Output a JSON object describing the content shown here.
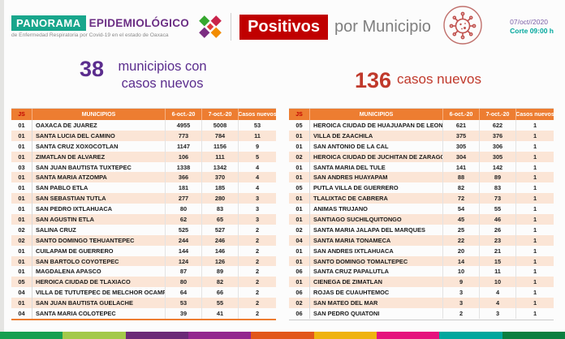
{
  "header": {
    "brand": {
      "panorama": "PANORAMA",
      "epidemiologico": "EPIDEMIOLÓGICO",
      "subtitle": "de Enfermedad Respiratoria por Covid-19 en el estado de Oaxaca"
    },
    "title_badge": "Positivos",
    "title_rest": "por Municipio",
    "date": "07/oct//2020",
    "cutoff": "Corte 09:00 h"
  },
  "summary": {
    "left_number": "38",
    "left_label": "municipios con casos nuevos",
    "right_number": "136",
    "right_label": "casos nuevos"
  },
  "tables": {
    "columns": [
      "JS",
      "MUNICIPIOS",
      "6-oct.-20",
      "7-oct.-20",
      "Casos nuevos"
    ],
    "left": {
      "rows": [
        [
          "01",
          "OAXACA DE JUAREZ",
          "4955",
          "5008",
          "53"
        ],
        [
          "01",
          "SANTA LUCIA DEL CAMINO",
          "773",
          "784",
          "11"
        ],
        [
          "01",
          "SANTA CRUZ XOXOCOTLAN",
          "1147",
          "1156",
          "9"
        ],
        [
          "01",
          "ZIMATLAN DE ALVAREZ",
          "106",
          "111",
          "5"
        ],
        [
          "03",
          "SAN JUAN BAUTISTA TUXTEPEC",
          "1338",
          "1342",
          "4"
        ],
        [
          "01",
          "SANTA MARIA ATZOMPA",
          "366",
          "370",
          "4"
        ],
        [
          "01",
          "SAN PABLO ETLA",
          "181",
          "185",
          "4"
        ],
        [
          "01",
          "SAN SEBASTIAN TUTLA",
          "277",
          "280",
          "3"
        ],
        [
          "01",
          "SAN PEDRO IXTLAHUACA",
          "80",
          "83",
          "3"
        ],
        [
          "01",
          "SAN AGUSTIN ETLA",
          "62",
          "65",
          "3"
        ],
        [
          "02",
          "SALINA CRUZ",
          "525",
          "527",
          "2"
        ],
        [
          "02",
          "SANTO DOMINGO TEHUANTEPEC",
          "244",
          "246",
          "2"
        ],
        [
          "01",
          "CUILAPAM DE GUERRERO",
          "144",
          "146",
          "2"
        ],
        [
          "01",
          "SAN BARTOLO COYOTEPEC",
          "124",
          "126",
          "2"
        ],
        [
          "01",
          "MAGDALENA APASCO",
          "87",
          "89",
          "2"
        ],
        [
          "05",
          "HEROICA CIUDAD DE TLAXIACO",
          "80",
          "82",
          "2"
        ],
        [
          "04",
          "VILLA DE TUTUTEPEC DE MELCHOR OCAMPO",
          "64",
          "66",
          "2"
        ],
        [
          "01",
          "SAN JUAN BAUTISTA GUELACHE",
          "53",
          "55",
          "2"
        ],
        [
          "04",
          "SANTA MARIA COLOTEPEC",
          "39",
          "41",
          "2"
        ]
      ]
    },
    "right": {
      "rows": [
        [
          "05",
          "HEROICA CIUDAD DE HUAJUAPAN DE LEON",
          "621",
          "622",
          "1"
        ],
        [
          "01",
          "VILLA DE ZAACHILA",
          "375",
          "376",
          "1"
        ],
        [
          "01",
          "SAN ANTONIO DE LA CAL",
          "305",
          "306",
          "1"
        ],
        [
          "02",
          "HEROICA CIUDAD DE JUCHITAN DE ZARAGOZA",
          "304",
          "305",
          "1"
        ],
        [
          "01",
          "SANTA MARIA DEL TULE",
          "141",
          "142",
          "1"
        ],
        [
          "01",
          "SAN ANDRES HUAYAPAM",
          "88",
          "89",
          "1"
        ],
        [
          "05",
          "PUTLA VILLA DE GUERRERO",
          "82",
          "83",
          "1"
        ],
        [
          "01",
          "TLALIXTAC DE CABRERA",
          "72",
          "73",
          "1"
        ],
        [
          "01",
          "ANIMAS TRUJANO",
          "54",
          "55",
          "1"
        ],
        [
          "01",
          "SANTIAGO SUCHILQUITONGO",
          "45",
          "46",
          "1"
        ],
        [
          "02",
          "SANTA MARIA JALAPA DEL MARQUES",
          "25",
          "26",
          "1"
        ],
        [
          "04",
          "SANTA MARIA TONAMECA",
          "22",
          "23",
          "1"
        ],
        [
          "01",
          "SAN ANDRES IXTLAHUACA",
          "20",
          "21",
          "1"
        ],
        [
          "01",
          "SANTO DOMINGO TOMALTEPEC",
          "14",
          "15",
          "1"
        ],
        [
          "06",
          "SANTA CRUZ PAPALUTLA",
          "10",
          "11",
          "1"
        ],
        [
          "01",
          "CIENEGA DE ZIMATLAN",
          "9",
          "10",
          "1"
        ],
        [
          "06",
          "ROJAS DE CUAUHTEMOC",
          "3",
          "4",
          "1"
        ],
        [
          "02",
          "SAN MATEO DEL MAR",
          "3",
          "4",
          "1"
        ],
        [
          "06",
          "SAN PEDRO QUIATONI",
          "2",
          "3",
          "1"
        ]
      ]
    }
  },
  "icons": {
    "virus_icon": "virus-icon",
    "diamond_logo": "diamond-logo-icon"
  },
  "colors": {
    "table_header_orange": "#ED7D31",
    "table_zebra_peach": "#FBE5D6",
    "badge_red": "#C00000",
    "summary_purple": "#5B2D8E",
    "summary_red": "#C0392B",
    "brand_teal": "#18A68C",
    "brand_purple": "#6B2E84",
    "cutoff_teal": "#00A79D",
    "footer_stripes": [
      "#169F50",
      "#A3C94A",
      "#6B2A77",
      "#93278F",
      "#E2571B",
      "#EFB310",
      "#E5137D",
      "#00A79D",
      "#0B7F3F"
    ]
  }
}
